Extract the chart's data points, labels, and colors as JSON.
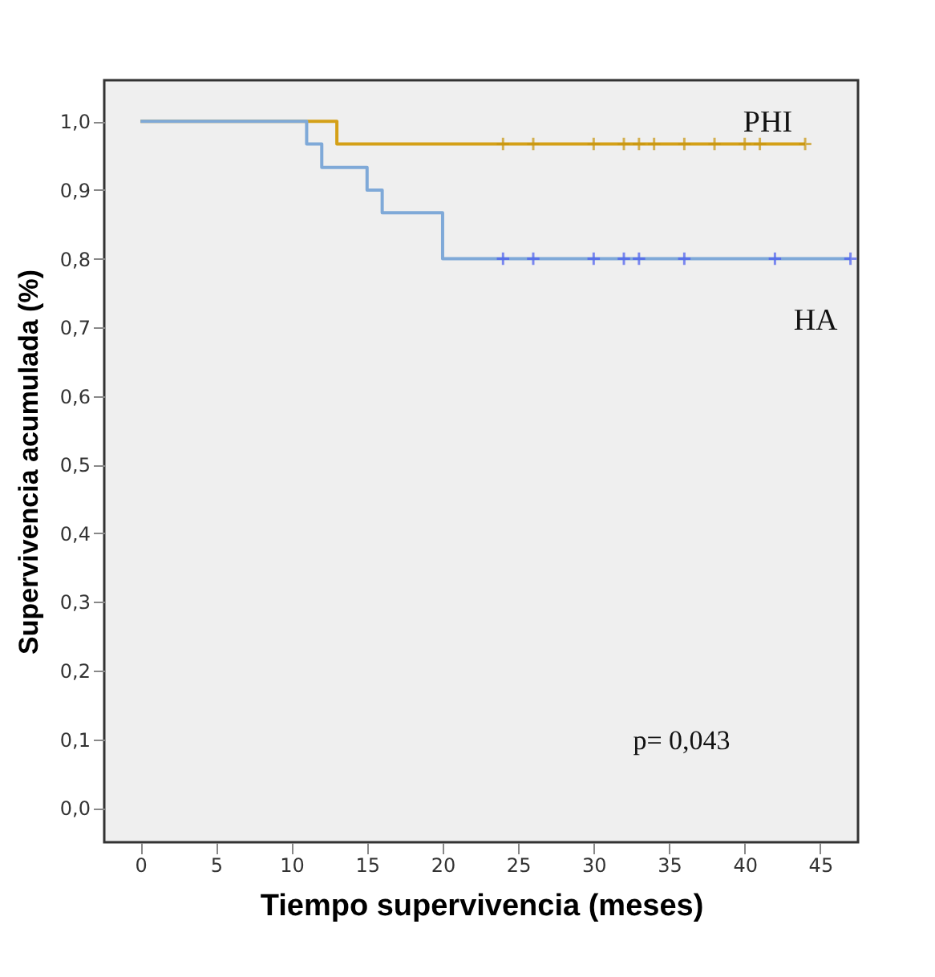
{
  "chart_data": {
    "type": "step",
    "xlabel": "Tiempo supervivencia (meses)",
    "ylabel": "Supervivencia acumulada (%)",
    "xlim": [
      -2.4,
      47.5
    ],
    "ylim": [
      -0.05,
      1.06
    ],
    "xticks": [
      0,
      5,
      10,
      15,
      20,
      25,
      30,
      35,
      40,
      45
    ],
    "yticks": [
      {
        "value": 0,
        "label": "0,0"
      },
      {
        "value": 0.1,
        "label": "0,1"
      },
      {
        "value": 0.2,
        "label": "0,2"
      },
      {
        "value": 0.3,
        "label": "0,3"
      },
      {
        "value": 0.4,
        "label": "0,4"
      },
      {
        "value": 0.5,
        "label": "0,5"
      },
      {
        "value": 0.6,
        "label": "0,6"
      },
      {
        "value": 0.7,
        "label": "0,7"
      },
      {
        "value": 0.8,
        "label": "0,8"
      },
      {
        "value": 0.9,
        "label": "0,9"
      },
      {
        "value": 1.0,
        "label": "1,0"
      }
    ],
    "grid": false,
    "series": [
      {
        "name": "PHI",
        "color": "#d4a017",
        "x": [
          0,
          13,
          44
        ],
        "values": [
          1.0,
          0.967,
          0.967
        ],
        "marker": "none"
      },
      {
        "name": "HA",
        "color": "#7fa9d8",
        "x": [
          0,
          11,
          12,
          15,
          16,
          20,
          47
        ],
        "values": [
          1.0,
          0.967,
          0.933,
          0.9,
          0.867,
          0.8,
          0.8
        ],
        "marker": "none"
      },
      {
        "type": "scatter",
        "color": "#c8960f",
        "x": [
          24,
          26,
          30,
          32,
          33,
          34,
          36,
          38,
          40,
          41,
          44
        ],
        "values": [
          0.967,
          0.967,
          0.967,
          0.967,
          0.967,
          0.967,
          0.967,
          0.967,
          0.967,
          0.967,
          0.967
        ],
        "marker": "cross"
      },
      {
        "type": "scatter",
        "color": "#4a5cf0",
        "x": [
          24,
          26,
          30,
          32,
          33,
          36,
          42,
          47
        ],
        "values": [
          0.8,
          0.8,
          0.8,
          0.8,
          0.8,
          0.8,
          0.8,
          0.8
        ],
        "marker": "cross"
      }
    ],
    "annotations": [
      "p= 0,043"
    ]
  }
}
